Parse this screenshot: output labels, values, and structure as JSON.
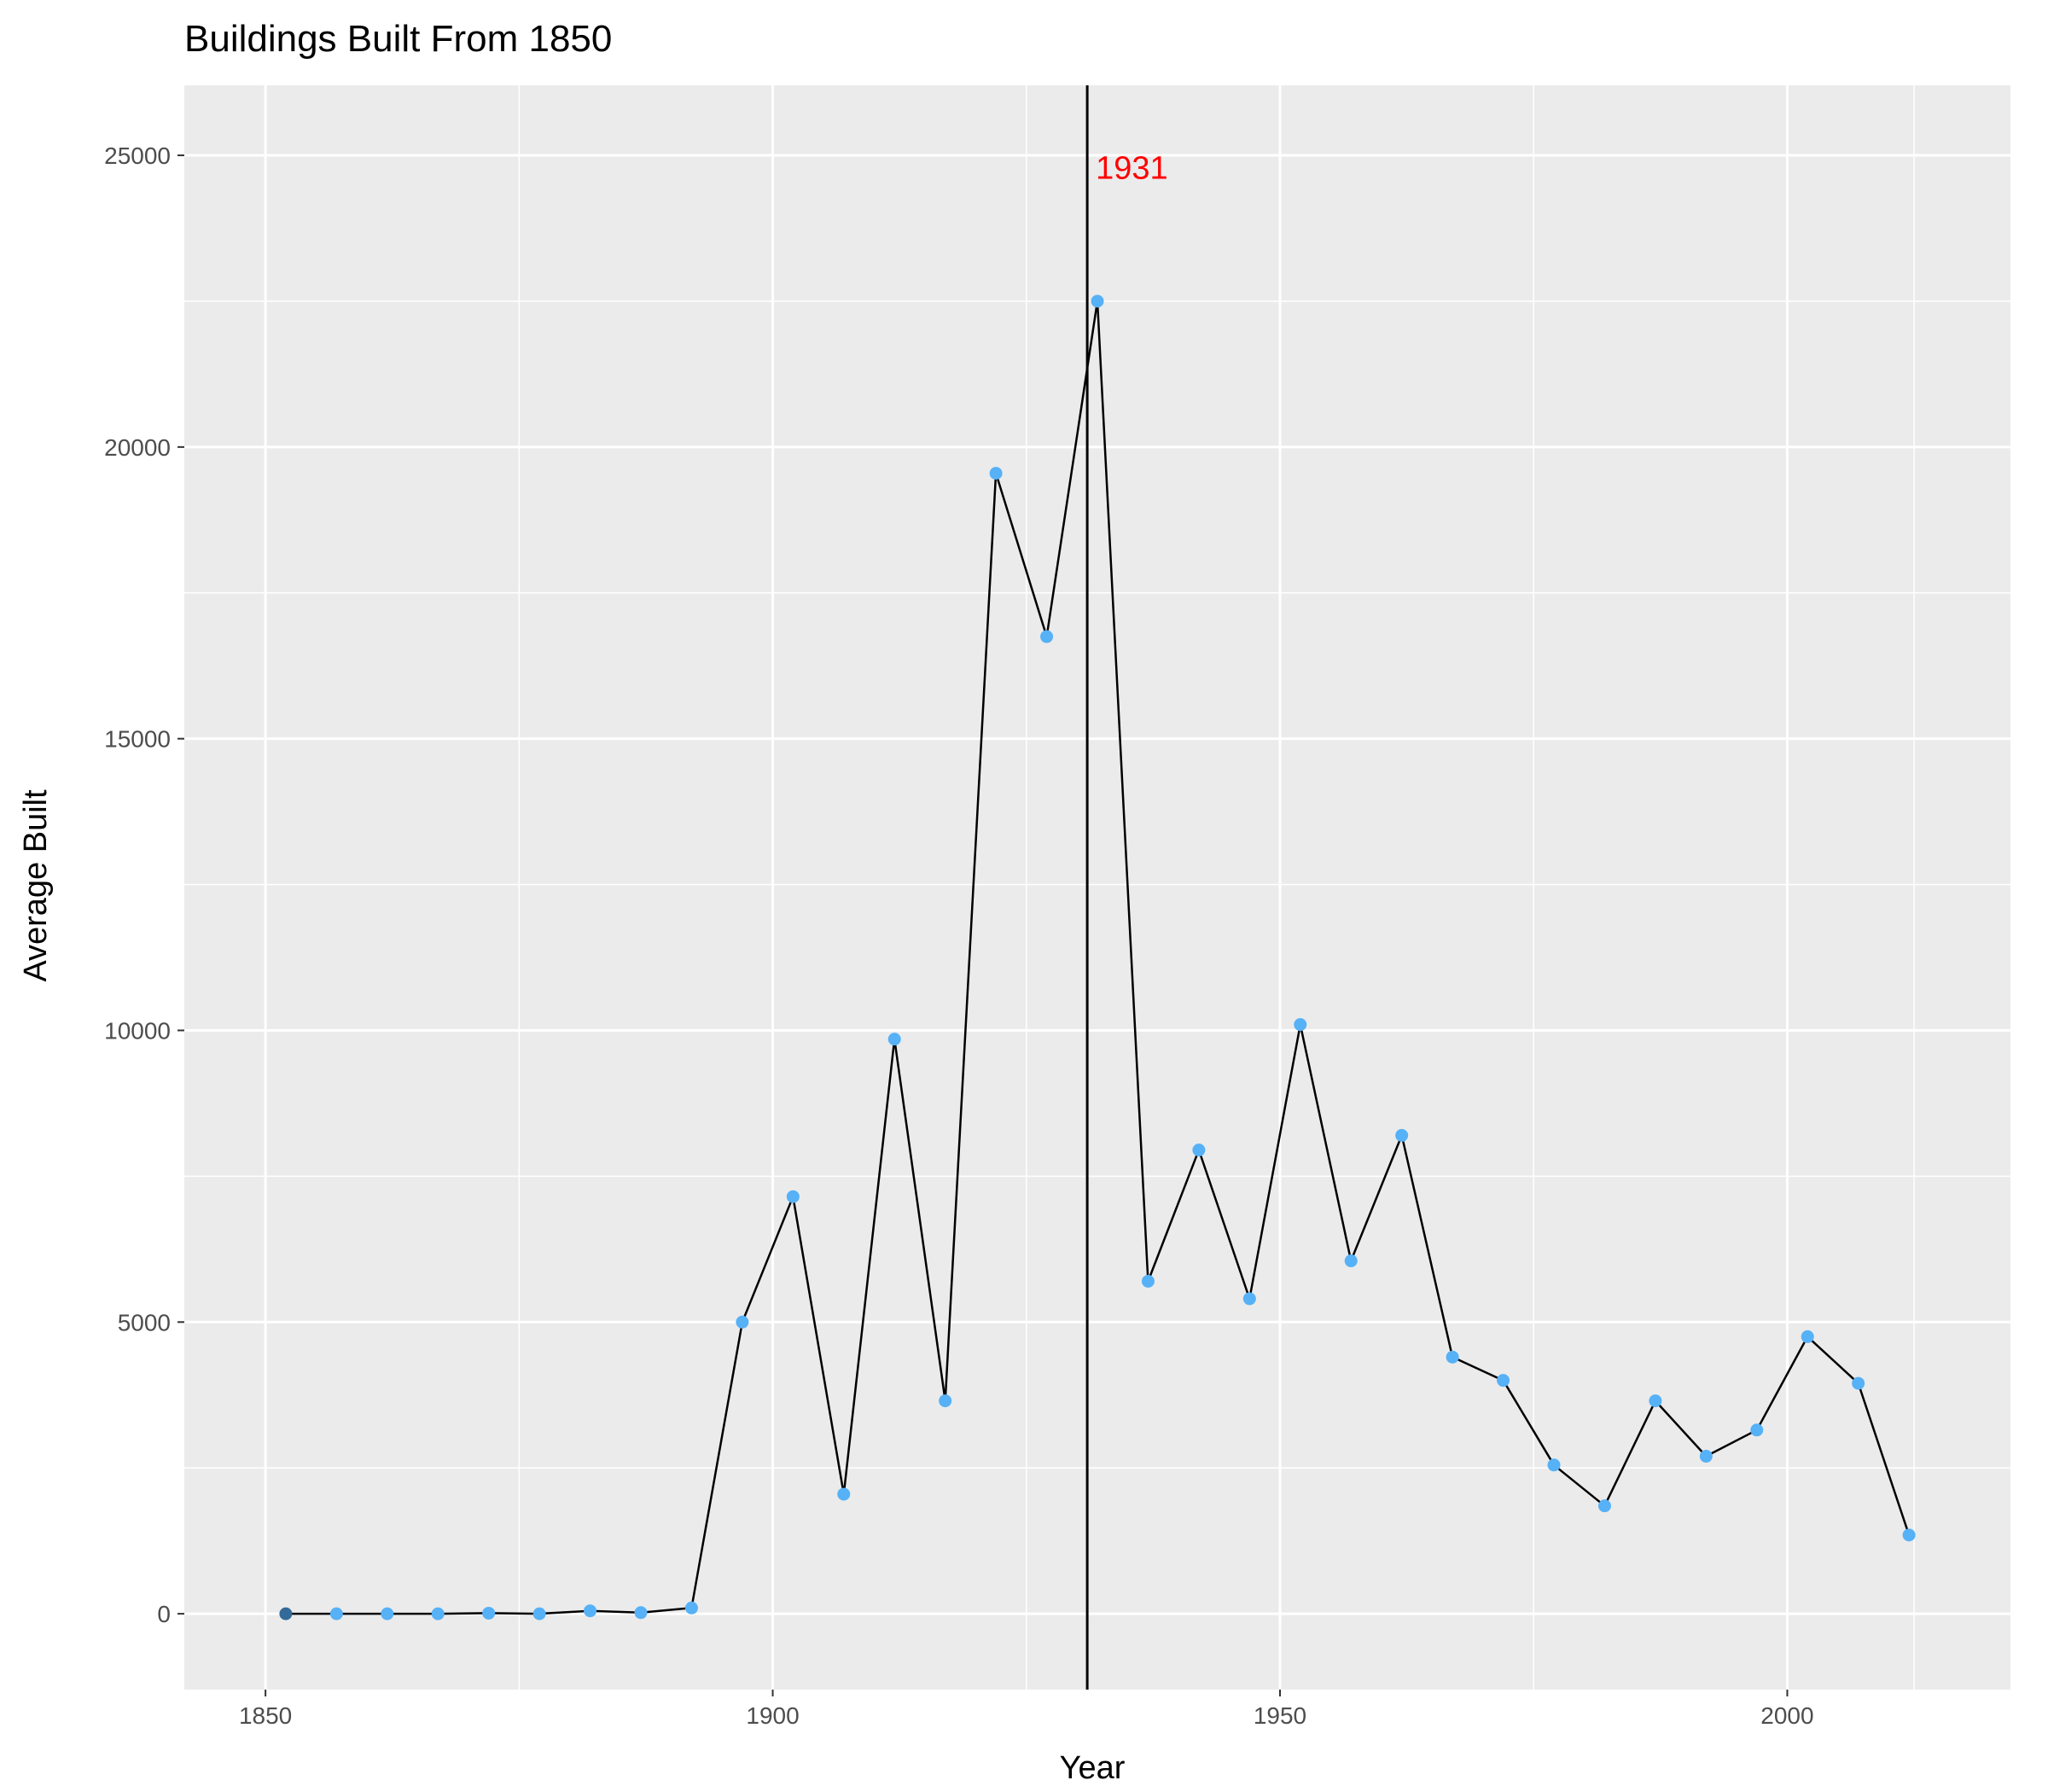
{
  "chart_data": {
    "type": "line",
    "title": "Buildings Built From 1850",
    "xlabel": "Year",
    "ylabel": "Average Built",
    "xlim": [
      1842,
      2022
    ],
    "ylim": [
      -1300,
      26200
    ],
    "x_ticks": [
      1850,
      1900,
      1950,
      2000
    ],
    "x_tick_labels": [
      "1850",
      "1900",
      "1950",
      "2000"
    ],
    "y_ticks": [
      0,
      5000,
      10000,
      15000,
      20000,
      25000
    ],
    "y_tick_labels": [
      "0",
      "5000",
      "10000",
      "15000",
      "20000",
      "25000"
    ],
    "grid": true,
    "legend": "none",
    "series": [
      {
        "x": [
          1852,
          1857,
          1862,
          1867,
          1872,
          1877,
          1882,
          1887,
          1892,
          1897,
          1902,
          1907,
          1912,
          1917,
          1922,
          1927,
          1932,
          1937,
          1942,
          1947,
          1952,
          1957,
          1962,
          1967,
          1972,
          1977,
          1982,
          1987,
          1992,
          1997,
          2002,
          2007,
          2012
        ],
        "y": [
          0,
          0,
          0,
          0,
          10,
          0,
          50,
          20,
          100,
          5000,
          7150,
          2050,
          9850,
          3650,
          19550,
          16750,
          22500,
          5700,
          7950,
          5400,
          10100,
          6050,
          8200,
          4400,
          4000,
          2550,
          1850,
          3650,
          2700,
          3150,
          4750,
          3950,
          1350
        ]
      }
    ],
    "annotation": {
      "label": "1931",
      "x": 1931,
      "label_y": 24800
    },
    "colors": {
      "panel_background": "#ebebeb",
      "grid": "#ffffff",
      "line": "#000000",
      "point": "#56b1f7",
      "first_point": "#336a98",
      "annotation": "#ff0000"
    }
  }
}
